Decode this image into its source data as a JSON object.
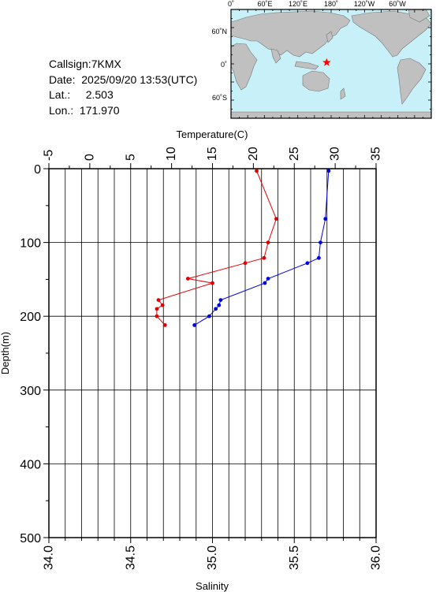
{
  "info": {
    "callsign_label": "Callsign:",
    "callsign": "7KMX",
    "date_label": "Date:",
    "date": "2025/09/20 13:53(UTC)",
    "lat_label": "Lat.:",
    "lat": "2.503",
    "lon_label": "Lon.:",
    "lon": "171.970"
  },
  "map": {
    "top_labels": [
      "0˚",
      "60˚E",
      "120˚E",
      "180˚",
      "120˚W",
      "60˚W"
    ],
    "left_labels": [
      "60˚N",
      "0˚",
      "60˚S"
    ],
    "ocean_color": "#c8f0f8",
    "land_color": "#c0c0c0",
    "marker_color": "#ff0000",
    "marker_icon": "star-icon",
    "marker_lon": 171.97,
    "marker_lat": 2.503
  },
  "chart_data": {
    "type": "line",
    "ylabel": "Depth(m)",
    "ylim": [
      0,
      500
    ],
    "y_ticks": [
      0,
      100,
      200,
      300,
      400,
      500
    ],
    "y_reversed": true,
    "grid": true,
    "temperature": {
      "xlabel": "Temperature(C)",
      "xlim": [
        -5,
        35
      ],
      "x_ticks": [
        -5,
        0,
        5,
        10,
        15,
        20,
        25,
        30,
        35
      ],
      "color": "#e00000",
      "points": [
        {
          "x": 20.4,
          "y": 3
        },
        {
          "x": 22.8,
          "y": 68
        },
        {
          "x": 21.8,
          "y": 100
        },
        {
          "x": 21.3,
          "y": 121
        },
        {
          "x": 19.0,
          "y": 128
        },
        {
          "x": 12.0,
          "y": 149
        },
        {
          "x": 15.0,
          "y": 155
        },
        {
          "x": 8.4,
          "y": 178
        },
        {
          "x": 8.9,
          "y": 185
        },
        {
          "x": 8.2,
          "y": 190
        },
        {
          "x": 8.2,
          "y": 200
        },
        {
          "x": 9.2,
          "y": 212
        }
      ]
    },
    "salinity": {
      "xlabel": "Salinity",
      "xlim": [
        34.0,
        36.0
      ],
      "x_ticks": [
        34.0,
        34.5,
        35.0,
        35.5,
        36.0
      ],
      "color": "#0000e0",
      "points": [
        {
          "x": 35.71,
          "y": 3
        },
        {
          "x": 35.69,
          "y": 68
        },
        {
          "x": 35.66,
          "y": 100
        },
        {
          "x": 35.65,
          "y": 121
        },
        {
          "x": 35.58,
          "y": 128
        },
        {
          "x": 35.34,
          "y": 149
        },
        {
          "x": 35.32,
          "y": 155
        },
        {
          "x": 35.05,
          "y": 178
        },
        {
          "x": 35.04,
          "y": 185
        },
        {
          "x": 35.02,
          "y": 190
        },
        {
          "x": 34.98,
          "y": 200
        },
        {
          "x": 34.89,
          "y": 212
        }
      ]
    }
  }
}
